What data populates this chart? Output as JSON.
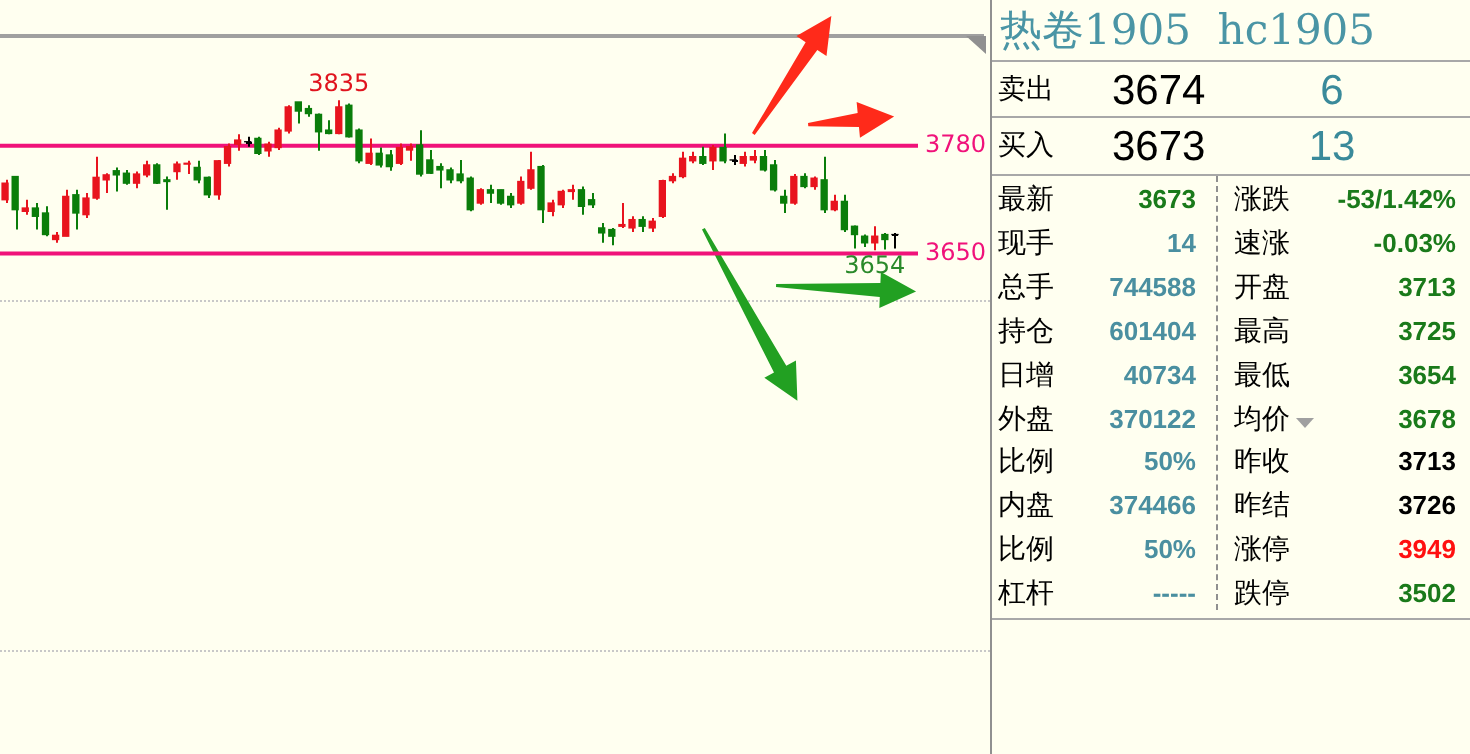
{
  "chart_data": [
    {
      "type": "candlestick",
      "categories": [
        null,
        null,
        null,
        null,
        null,
        null,
        null,
        null,
        null,
        null,
        null,
        null,
        null,
        null,
        null,
        null,
        null,
        null,
        null,
        null,
        null,
        null,
        null,
        null,
        null,
        null,
        null,
        null,
        null,
        null,
        null,
        null,
        null,
        null,
        null,
        null,
        null,
        null,
        null,
        null,
        null,
        null,
        null,
        null,
        null,
        null,
        null,
        null,
        null,
        null,
        null,
        null,
        null,
        null,
        null,
        null,
        null,
        null,
        null,
        null,
        null,
        null,
        null,
        null,
        null,
        null,
        null,
        null,
        null,
        null,
        null,
        null,
        null,
        null,
        null,
        null,
        null,
        null,
        null,
        null,
        null,
        null,
        null,
        null,
        null,
        null,
        null,
        null,
        null
      ],
      "ohlc": [
        [
          3715,
          3739,
          3711,
          3735
        ],
        [
          3743,
          3743,
          3679,
          3703
        ],
        [
          3701,
          3715,
          3697,
          3705
        ],
        [
          3705,
          3711,
          3679,
          3695
        ],
        [
          3699,
          3707,
          3671,
          3673
        ],
        [
          3667,
          3676,
          3663,
          3672
        ],
        [
          3671,
          3727,
          3671,
          3719
        ],
        [
          3721,
          3727,
          3679,
          3699
        ],
        [
          3697,
          3723,
          3693,
          3717
        ],
        [
          3717,
          3767,
          3715,
          3742
        ],
        [
          3739,
          3747,
          3723,
          3745
        ],
        [
          3750,
          3754,
          3725,
          3745
        ],
        [
          3747,
          3751,
          3733,
          3735
        ],
        [
          3735,
          3749,
          3729,
          3746
        ],
        [
          3745,
          3762,
          3742,
          3757
        ],
        [
          3757,
          3759,
          3734,
          3735
        ],
        [
          3739,
          3743,
          3703,
          3737
        ],
        [
          3749,
          3761,
          3739,
          3758
        ],
        [
          3758,
          3762,
          3746,
          3759
        ],
        [
          3754,
          3762,
          3735,
          3739
        ],
        [
          3742,
          3743,
          3717,
          3721
        ],
        [
          3721,
          3763,
          3715,
          3762
        ],
        [
          3759,
          3783,
          3755,
          3779
        ],
        [
          3782,
          3794,
          3774,
          3787
        ],
        [
          3785,
          3791,
          3779,
          3785
        ],
        [
          3789,
          3791,
          3769,
          3771
        ],
        [
          3774,
          3785,
          3767,
          3782
        ],
        [
          3778,
          3802,
          3775,
          3799
        ],
        [
          3798,
          3829,
          3795,
          3827
        ],
        [
          3833,
          3833,
          3807,
          3822
        ],
        [
          3825,
          3829,
          3815,
          3819
        ],
        [
          3818,
          3819,
          3774,
          3797
        ],
        [
          3799,
          3811,
          3794,
          3795
        ],
        [
          3795,
          3835,
          3794,
          3827
        ],
        [
          3829,
          3831,
          3790,
          3791
        ],
        [
          3799,
          3801,
          3759,
          3762
        ],
        [
          3759,
          3789,
          3757,
          3771
        ],
        [
          3771,
          3778,
          3754,
          3757
        ],
        [
          3769,
          3775,
          3750,
          3755
        ],
        [
          3759,
          3783,
          3757,
          3778
        ],
        [
          3775,
          3783,
          3762,
          3779
        ],
        [
          3781,
          3799,
          3743,
          3746
        ],
        [
          3763,
          3775,
          3746,
          3747
        ],
        [
          3755,
          3759,
          3729,
          3751
        ],
        [
          3751,
          3754,
          3735,
          3739
        ],
        [
          3746,
          3763,
          3735,
          3738
        ],
        [
          3741,
          3743,
          3701,
          3703
        ],
        [
          3711,
          3729,
          3709,
          3727
        ],
        [
          3727,
          3733,
          3711,
          3723
        ],
        [
          3727,
          3727,
          3709,
          3711
        ],
        [
          3719,
          3723,
          3705,
          3709
        ],
        [
          3711,
          3743,
          3709,
          3737
        ],
        [
          3729,
          3773,
          3727,
          3751
        ],
        [
          3755,
          3757,
          3687,
          3703
        ],
        [
          3701,
          3715,
          3695,
          3711
        ],
        [
          3709,
          3727,
          3705,
          3725
        ],
        [
          3725,
          3733,
          3715,
          3727
        ],
        [
          3727,
          3731,
          3697,
          3707
        ],
        [
          3715,
          3723,
          3705,
          3709
        ],
        [
          3681,
          3687,
          3663,
          3675
        ],
        [
          3679,
          3681,
          3660,
          3671
        ],
        [
          3683,
          3711,
          3681,
          3685
        ],
        [
          3681,
          3695,
          3676,
          3691
        ],
        [
          3691,
          3695,
          3676,
          3683
        ],
        [
          3681,
          3693,
          3676,
          3689
        ],
        [
          3695,
          3739,
          3693,
          3738
        ],
        [
          3738,
          3747,
          3735,
          3743
        ],
        [
          3743,
          3773,
          3741,
          3765
        ],
        [
          3762,
          3773,
          3759,
          3767
        ],
        [
          3767,
          3779,
          3757,
          3759
        ],
        [
          3762,
          3781,
          3751,
          3778
        ],
        [
          3778,
          3795,
          3759,
          3762
        ],
        [
          3763,
          3769,
          3757,
          3763
        ],
        [
          3759,
          3773,
          3755,
          3767
        ],
        [
          3763,
          3775,
          3759,
          3767
        ],
        [
          3767,
          3775,
          3749,
          3751
        ],
        [
          3757,
          3763,
          3725,
          3727
        ],
        [
          3719,
          3727,
          3699,
          3711
        ],
        [
          3711,
          3746,
          3709,
          3743
        ],
        [
          3743,
          3747,
          3729,
          3731
        ],
        [
          3731,
          3743,
          3727,
          3741
        ],
        [
          3739,
          3767,
          3699,
          3703
        ],
        [
          3703,
          3721,
          3701,
          3713
        ],
        [
          3713,
          3721,
          3676,
          3679
        ],
        [
          3683,
          3684,
          3656,
          3673
        ],
        [
          3671,
          3673,
          3658,
          3663
        ],
        [
          3663,
          3683,
          3654,
          3671
        ],
        [
          3673,
          3675,
          3655,
          3667
        ],
        [
          3673,
          3675,
          3656,
          3673
        ]
      ],
      "colors": [
        "#e8141e",
        "#0a7d0a",
        "#e8141e",
        "#0a7d0a",
        "#0a7d0a",
        "#e8141e",
        "#e8141e",
        "#0a7d0a",
        "#e8141e",
        "#e8141e",
        "#e8141e",
        "#0a7d0a",
        "#0a7d0a",
        "#e8141e",
        "#e8141e",
        "#0a7d0a",
        "#0a7d0a",
        "#e8141e",
        "#e8141e",
        "#0a7d0a",
        "#0a7d0a",
        "#e8141e",
        "#e8141e",
        "#e8141e",
        "#000000",
        "#0a7d0a",
        "#e8141e",
        "#e8141e",
        "#e8141e",
        "#0a7d0a",
        "#0a7d0a",
        "#0a7d0a",
        "#0a7d0a",
        "#e8141e",
        "#0a7d0a",
        "#0a7d0a",
        "#e8141e",
        "#0a7d0a",
        "#0a7d0a",
        "#e8141e",
        "#e8141e",
        "#0a7d0a",
        "#0a7d0a",
        "#0a7d0a",
        "#0a7d0a",
        "#0a7d0a",
        "#0a7d0a",
        "#e8141e",
        "#0a7d0a",
        "#0a7d0a",
        "#0a7d0a",
        "#e8141e",
        "#e8141e",
        "#0a7d0a",
        "#e8141e",
        "#e8141e",
        "#e8141e",
        "#0a7d0a",
        "#0a7d0a",
        "#0a7d0a",
        "#0a7d0a",
        "#e8141e",
        "#e8141e",
        "#0a7d0a",
        "#e8141e",
        "#e8141e",
        "#e8141e",
        "#e8141e",
        "#e8141e",
        "#0a7d0a",
        "#e8141e",
        "#0a7d0a",
        "#000000",
        "#e8141e",
        "#e8141e",
        "#0a7d0a",
        "#0a7d0a",
        "#0a7d0a",
        "#e8141e",
        "#0a7d0a",
        "#e8141e",
        "#0a7d0a",
        "#e8141e",
        "#0a7d0a",
        "#0a7d0a",
        "#0a7d0a",
        "#e8141e",
        "#0a7d0a",
        "#000000"
      ],
      "ylim": [
        3594,
        3915
      ],
      "yticks": [
        3780,
        3650
      ],
      "ref_lines": [
        {
          "axis": "y",
          "value": 3780,
          "color": "#f0127a"
        },
        {
          "axis": "y",
          "value": 3650,
          "color": "#f0127a"
        }
      ],
      "annotations": [
        {
          "text": "3835",
          "y": 3835
        },
        {
          "text": "3654",
          "y": 3654
        }
      ],
      "tick_labels": "y"
    },
    {
      "type": "other",
      "title": "热卷1905  hc1905",
      "annotations": [
        "卖出",
        "3674",
        "6",
        "买入",
        "3673",
        "13",
        "最新",
        "3673",
        "涨跌",
        "-53/1.42%",
        "现手",
        "14",
        "速涨",
        "-0.03%",
        "总手",
        "744588",
        "开盘",
        "3713",
        "持仓",
        "601404",
        "最高",
        "3725",
        "日增",
        "40734",
        "最低",
        "3654",
        "外盘",
        "370122",
        "均价",
        "3678",
        "比例",
        "50%",
        "昨收",
        "3713",
        "内盘",
        "374466",
        "昨结",
        "3726",
        "比例",
        "50%",
        "涨停",
        "3949",
        "杠杆",
        "-----",
        "跌停",
        "3502"
      ]
    }
  ]
}
